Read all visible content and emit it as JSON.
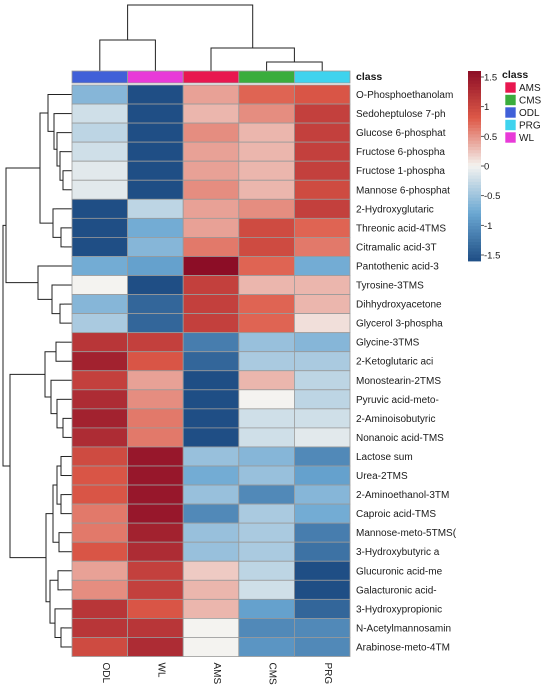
{
  "chart_data": {
    "type": "heatmap",
    "title": "",
    "columns": [
      "ODL",
      "WL",
      "AMS",
      "CMS",
      "PRG"
    ],
    "column_classes": [
      "ODL",
      "WL",
      "AMS",
      "CMS",
      "PRG"
    ],
    "rows": [
      "O-Phosphoethanolam",
      "Sedoheptulose 7-ph",
      "Glucose 6-phosphat",
      "Fructose 6-phospha",
      "Fructose 1-phospha",
      "Mannose 6-phosphat",
      "2-Hydroxyglutaric",
      "Threonic acid-4TMS",
      "Citramalic acid-3T",
      "Pantothenic acid-3",
      "Tyrosine-3TMS",
      "Dihhydroxyacetone",
      "Glycerol 3-phospha",
      "Glycine-3TMS",
      "2-Ketoglutaric aci",
      "Monostearin-2TMS",
      "Pyruvic acid-meto-",
      "2-Aminoisobutyric",
      "Nonanoic acid-TMS",
      "Lactose sum",
      "Urea-2TMS",
      "2-Aminoethanol-3TM",
      "Caproic acid-TMS",
      "Mannose-meto-5TMS(",
      "3-Hydroxybutyric a",
      "Glucuronic acid-me",
      "Galacturonic acid-",
      "3-Hydroxypropionic",
      "N-Acetylmannosamin",
      "Arabinose-meto-4TM"
    ],
    "values": [
      [
        -0.6,
        -1.5,
        0.4,
        0.7,
        0.8
      ],
      [
        -0.2,
        -1.6,
        0.3,
        0.5,
        1.0
      ],
      [
        -0.3,
        -1.6,
        0.5,
        0.3,
        1.0
      ],
      [
        -0.2,
        -1.6,
        0.4,
        0.3,
        1.0
      ],
      [
        -0.1,
        -1.6,
        0.4,
        0.3,
        1.0
      ],
      [
        -0.1,
        -1.6,
        0.5,
        0.3,
        0.9
      ],
      [
        -1.6,
        -0.3,
        0.4,
        0.5,
        1.0
      ],
      [
        -1.5,
        -0.7,
        0.4,
        0.9,
        0.7
      ],
      [
        -1.5,
        -0.6,
        0.6,
        0.9,
        0.6
      ],
      [
        -0.7,
        -0.8,
        1.5,
        0.7,
        -0.7
      ],
      [
        0.0,
        -1.6,
        1.0,
        0.3,
        0.3
      ],
      [
        -0.6,
        -1.3,
        1.0,
        0.7,
        0.3
      ],
      [
        -0.4,
        -1.3,
        1.0,
        0.7,
        0.1
      ],
      [
        1.1,
        1.0,
        -1.1,
        -0.5,
        -0.6
      ],
      [
        1.3,
        0.8,
        -1.3,
        -0.4,
        -0.4
      ],
      [
        1.0,
        0.4,
        -1.6,
        0.3,
        -0.3
      ],
      [
        1.2,
        0.5,
        -1.5,
        0.0,
        -0.3
      ],
      [
        1.3,
        0.6,
        -1.5,
        -0.2,
        -0.2
      ],
      [
        1.2,
        0.6,
        -1.5,
        -0.2,
        -0.1
      ],
      [
        0.9,
        1.4,
        -0.5,
        -0.6,
        -1.0
      ],
      [
        0.8,
        1.4,
        -0.7,
        -0.5,
        -0.8
      ],
      [
        0.8,
        1.4,
        -0.5,
        -1.0,
        -0.6
      ],
      [
        0.6,
        1.4,
        -1.0,
        -0.4,
        -0.7
      ],
      [
        0.6,
        1.3,
        -0.5,
        -0.4,
        -1.1
      ],
      [
        0.8,
        1.2,
        -0.5,
        -0.4,
        -1.2
      ],
      [
        0.4,
        1.0,
        0.2,
        -0.3,
        -1.6
      ],
      [
        0.5,
        1.0,
        0.3,
        -0.2,
        -1.6
      ],
      [
        1.1,
        0.8,
        0.3,
        -0.8,
        -1.3
      ],
      [
        1.1,
        1.1,
        0.0,
        -1.0,
        -1.0
      ],
      [
        0.9,
        1.2,
        0.0,
        -0.9,
        -1.0
      ]
    ],
    "color_scale": {
      "min": -1.5,
      "max": 1.5,
      "ticks": [
        1.5,
        1,
        0.5,
        0,
        -0.5,
        -1,
        -1.5
      ],
      "tick_labels": [
        "1.5",
        "1",
        "0.5",
        "0",
        "-0.5",
        "-1",
        "-1.5"
      ],
      "low_color": "#1f4e85",
      "mid_color": "#f4f3f0",
      "high_color": "#8c0d26"
    },
    "annotation": {
      "label": "class",
      "legend_title": "class",
      "categories": [
        "AMS",
        "CMS",
        "ODL",
        "PRG",
        "WL"
      ],
      "colors": {
        "AMS": "#e8174f",
        "CMS": "#3aad3d",
        "ODL": "#4060d8",
        "PRG": "#3fd3ee",
        "WL": "#e83ad8"
      }
    },
    "column_dendrogram": true,
    "row_dendrogram": true
  }
}
